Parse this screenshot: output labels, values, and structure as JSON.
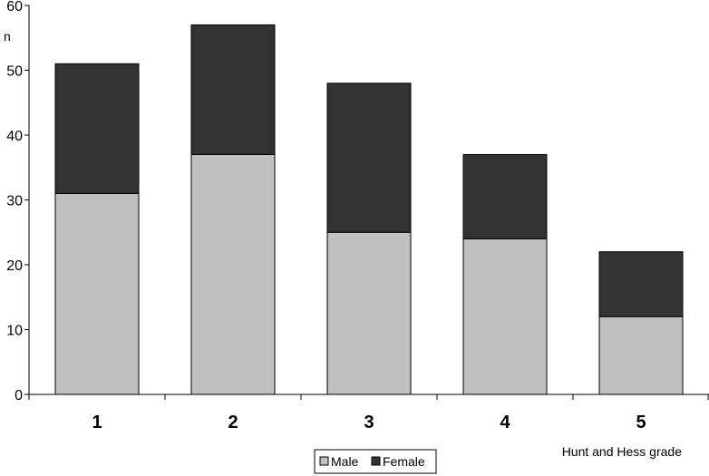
{
  "chart_data": {
    "type": "bar",
    "stacked": true,
    "categories": [
      "1",
      "2",
      "3",
      "4",
      "5"
    ],
    "series": [
      {
        "name": "Male",
        "values": [
          31,
          37,
          25,
          24,
          12
        ],
        "color": "#c0c0c0"
      },
      {
        "name": "Female",
        "values": [
          20,
          20,
          23,
          13,
          10
        ],
        "color": "#333333"
      }
    ],
    "ylim": [
      0,
      60
    ],
    "yticks": [
      "0",
      "10",
      "20",
      "30",
      "40",
      "50",
      "60"
    ],
    "ylabel": "n",
    "xlabel": "Hunt and Hess grade",
    "legend_position": "bottom",
    "grid": false
  }
}
